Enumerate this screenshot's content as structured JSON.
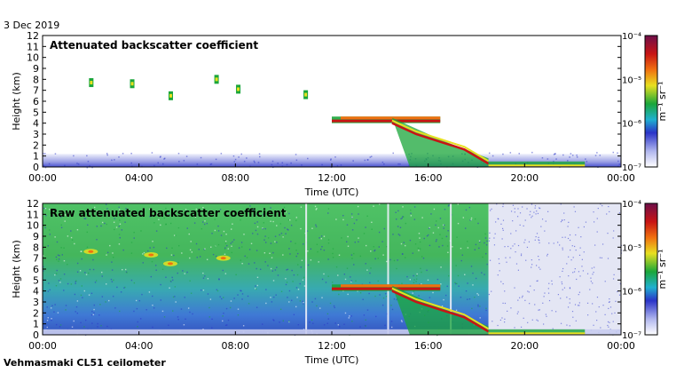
{
  "date_label": "3 Dec 2019",
  "footer_label": "Vehmasmaki CL51 ceilometer",
  "colors": {
    "background_low": "#e6e8f4",
    "blue": "#2a33c8",
    "green": "#1aa63a",
    "yellow": "#e8e020",
    "orange": "#f07010",
    "red": "#c81414",
    "dark_red": "#6e0f4a"
  },
  "chart_data": [
    {
      "type": "heatmap",
      "title": "Attenuated backscatter coefficient",
      "xlabel": "Time (UTC)",
      "ylabel": "Height (km)",
      "x_ticks": [
        "00:00",
        "04:00",
        "08:00",
        "12:00",
        "16:00",
        "20:00",
        "00:00"
      ],
      "xlim_hours": [
        0,
        24
      ],
      "y_ticks": [
        "0",
        "1",
        "2",
        "3",
        "4",
        "5",
        "6",
        "7",
        "8",
        "9",
        "10",
        "11",
        "12"
      ],
      "ylim_km": [
        0,
        12
      ],
      "colorbar": {
        "label": "m⁻¹ sr⁻¹",
        "scale": "log",
        "tick_labels": [
          "10⁻⁷",
          "10⁻⁶",
          "10⁻⁵",
          "10⁻⁴"
        ]
      },
      "features": [
        {
          "kind": "cloud_patches",
          "time_h": [
            2.0,
            3.7,
            5.3,
            7.2,
            8.1,
            10.9
          ],
          "height_km": [
            7.7,
            7.6,
            6.5,
            8.0,
            7.1,
            6.6
          ]
        },
        {
          "kind": "cloud_layer",
          "time_h_start": 12.0,
          "time_h_end": 16.5,
          "height_km_top": 4.6,
          "height_km_base": 4.0
        },
        {
          "kind": "descending_cloud_base",
          "time_h_start": 14.5,
          "time_h_end": 18.5,
          "height_km_start": 4.0,
          "height_km_end": 0.3
        },
        {
          "kind": "boundary_layer",
          "time_h_start": 0,
          "time_h_end": 24,
          "height_km_top": 1.2
        }
      ]
    },
    {
      "type": "heatmap",
      "title": "Raw attenuated backscatter coefficient",
      "xlabel": "Time (UTC)",
      "ylabel": "Height (km)",
      "x_ticks": [
        "00:00",
        "04:00",
        "08:00",
        "12:00",
        "16:00",
        "20:00",
        "00:00"
      ],
      "xlim_hours": [
        0,
        24
      ],
      "y_ticks": [
        "0",
        "1",
        "2",
        "3",
        "4",
        "5",
        "6",
        "7",
        "8",
        "9",
        "10",
        "11",
        "12"
      ],
      "ylim_km": [
        0,
        12
      ],
      "colorbar": {
        "label": "m⁻¹ sr⁻¹",
        "scale": "log",
        "tick_labels": [
          "10⁻⁷",
          "10⁻⁶",
          "10⁻⁵",
          "10⁻⁴"
        ]
      },
      "features": [
        {
          "kind": "noise_field",
          "time_h_start": 0,
          "time_h_end": 18.5,
          "height_km_top": 12
        },
        {
          "kind": "cloud_layer",
          "time_h_start": 12.0,
          "time_h_end": 16.5,
          "height_km_top": 4.6,
          "height_km_base": 4.0
        },
        {
          "kind": "descending_cloud_base",
          "time_h_start": 14.5,
          "time_h_end": 18.5,
          "height_km_start": 4.0,
          "height_km_end": 0.3
        }
      ]
    }
  ]
}
